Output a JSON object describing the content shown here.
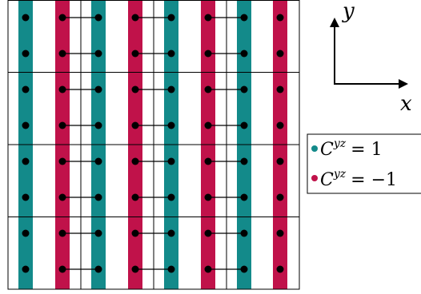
{
  "axes": {
    "x_label": "x",
    "y_label": "y"
  },
  "legend": {
    "items": [
      {
        "base": "C",
        "superscript": "yz",
        "relation": "= 1",
        "color": "#138a8a"
      },
      {
        "base": "C",
        "superscript": "yz",
        "relation": "= −1",
        "color": "#c0124a"
      }
    ]
  },
  "lattice": {
    "stripe_sequence": [
      "teal",
      "crimson",
      "teal",
      "crimson",
      "teal",
      "crimson",
      "teal",
      "crimson"
    ],
    "colors": {
      "teal": "#138a8a",
      "crimson": "#c0124a",
      "dot": "#000000",
      "line": "#000000"
    },
    "dot_rows": 8,
    "block_rows": 4,
    "block_cols": 4,
    "bonded_column_pairs": [
      [
        1,
        2
      ],
      [
        3,
        4
      ],
      [
        5,
        6
      ]
    ]
  }
}
